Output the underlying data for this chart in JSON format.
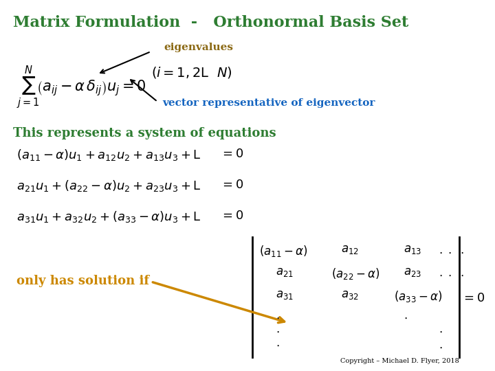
{
  "title": "Matrix Formulation  -   Orthonormal Basis Set",
  "title_color": "#2E7D32",
  "title_fontsize": 16,
  "background_color": "#ffffff",
  "eigenvalues_label": "eigenvalues",
  "eigenvalues_color": "#8B6914",
  "vector_label": "vector representative of eigenvector",
  "vector_color": "#1565C0",
  "system_label": "This represents a system of equations",
  "system_color": "#2E7D32",
  "only_label": "only has solution if",
  "only_color": "#CC8800",
  "copyright": "Copyright – Michael D. Flyer, 2018",
  "arrow_color_black": "#000000",
  "arrow_color_orange": "#CC8800"
}
